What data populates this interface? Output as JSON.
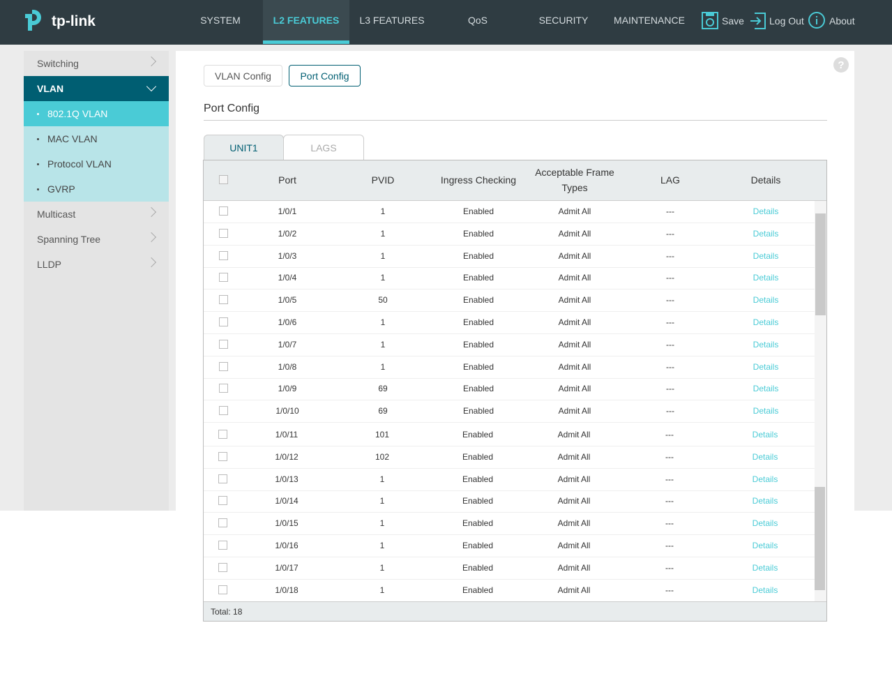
{
  "header": {
    "logo": "tp-link",
    "nav": [
      "SYSTEM",
      "L2 FEATURES",
      "L3 FEATURES",
      "QoS",
      "SECURITY",
      "MAINTENANCE"
    ],
    "actions": [
      "Save",
      "Log Out",
      "About"
    ]
  },
  "sidebar": {
    "items": [
      {
        "label": "Switching"
      },
      {
        "label": "VLAN",
        "children": [
          "802.1Q VLAN",
          "MAC VLAN",
          "Protocol VLAN",
          "GVRP"
        ]
      },
      {
        "label": "Multicast"
      },
      {
        "label": "Spanning Tree"
      },
      {
        "label": "LLDP"
      }
    ]
  },
  "help_icon": "?",
  "tabs": [
    "VLAN Config",
    "Port Config"
  ],
  "section_title": "Port Config",
  "unit_tabs": [
    "UNIT1",
    "LAGS"
  ],
  "table": {
    "columns": [
      "Port",
      "PVID",
      "Ingress Checking",
      "Acceptable Frame Types",
      "LAG",
      "Details"
    ],
    "rows": [
      [
        "1/0/1",
        1,
        "Enabled",
        "Admit All",
        "---",
        "Details"
      ],
      [
        "1/0/2",
        1,
        "Enabled",
        "Admit All",
        "---",
        "Details"
      ],
      [
        "1/0/3",
        1,
        "Enabled",
        "Admit All",
        "---",
        "Details"
      ],
      [
        "1/0/4",
        1,
        "Enabled",
        "Admit All",
        "---",
        "Details"
      ],
      [
        "1/0/5",
        50,
        "Enabled",
        "Admit All",
        "---",
        "Details"
      ],
      [
        "1/0/6",
        1,
        "Enabled",
        "Admit All",
        "---",
        "Details"
      ],
      [
        "1/0/7",
        1,
        "Enabled",
        "Admit All",
        "---",
        "Details"
      ],
      [
        "1/0/8",
        1,
        "Enabled",
        "Admit All",
        "---",
        "Details"
      ],
      [
        "1/0/9",
        69,
        "Enabled",
        "Admit All",
        "---",
        "Details"
      ],
      [
        "1/0/10",
        69,
        "Enabled",
        "Admit All",
        "---",
        "Details"
      ],
      [
        "1/0/11",
        101,
        "Enabled",
        "Admit All",
        "---",
        "Details"
      ],
      [
        "1/0/12",
        102,
        "Enabled",
        "Admit All",
        "---",
        "Details"
      ],
      [
        "1/0/13",
        1,
        "Enabled",
        "Admit All",
        "---",
        "Details"
      ],
      [
        "1/0/14",
        1,
        "Enabled",
        "Admit All",
        "---",
        "Details"
      ],
      [
        "1/0/15",
        1,
        "Enabled",
        "Admit All",
        "---",
        "Details"
      ],
      [
        "1/0/16",
        1,
        "Enabled",
        "Admit All",
        "---",
        "Details"
      ],
      [
        "1/0/17",
        1,
        "Enabled",
        "Admit All",
        "---",
        "Details"
      ],
      [
        "1/0/18",
        1,
        "Enabled",
        "Admit All",
        "---",
        "Details"
      ]
    ]
  },
  "footer": "Total: 18"
}
